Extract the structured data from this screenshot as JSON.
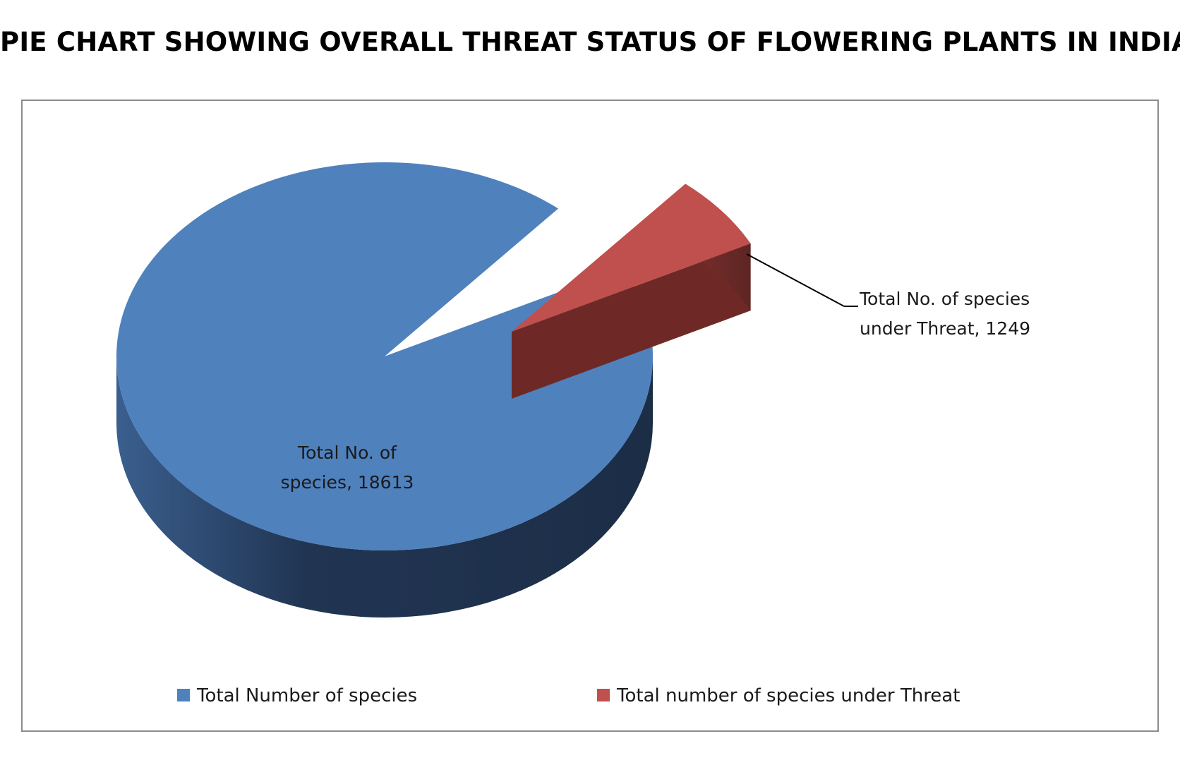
{
  "title": "PIE CHART SHOWING OVERALL THREAT STATUS OF FLOWERING PLANTS IN INDIA",
  "chart_data": {
    "type": "pie",
    "style": "3d-exploded",
    "title": "PIE CHART SHOWING OVERALL THREAT STATUS OF FLOWERING PLANTS IN INDIA",
    "slices": [
      {
        "name": "Total Number of species",
        "value": 18613,
        "label_line1": "Total  No. of",
        "label_line2": "species, 18613",
        "color": "#4F81BD",
        "side_color": "#2C4A70"
      },
      {
        "name": "Total number of species under Threat",
        "value": 1249,
        "label_line1": "Total No. of species",
        "label_line2": "under Threat, 1249",
        "color": "#C0504D",
        "side_color": "#6B2A28",
        "exploded": true
      }
    ],
    "legend": {
      "position": "bottom",
      "items": [
        {
          "label": "Total Number of species",
          "color": "#4F81BD"
        },
        {
          "label": "Total number of species under Threat",
          "color": "#C0504D"
        }
      ]
    }
  }
}
